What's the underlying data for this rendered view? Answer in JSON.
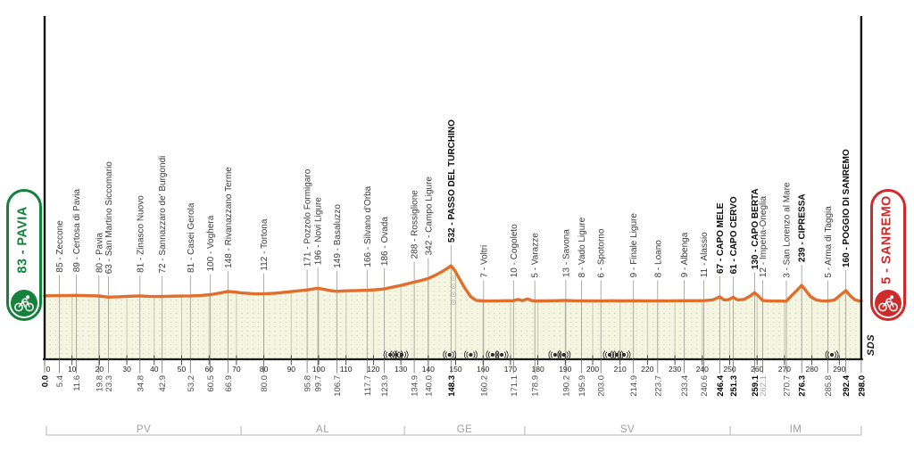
{
  "race": {
    "start_badge": {
      "text": "83 - PAVIA"
    },
    "finish_badge": {
      "text": "5 - SANREMO"
    },
    "brand": "SDS"
  },
  "chart_data": {
    "type": "area",
    "title": "Road race elevation profile Pavia - Sanremo",
    "x_unit": "km",
    "y_unit": "m",
    "x_range": [
      0,
      298
    ],
    "total_km": 298.0,
    "max_elev_m": 532,
    "x_axis_ticks_km": [
      0,
      10,
      20,
      30,
      40,
      50,
      60,
      70,
      80,
      90,
      100,
      110,
      120,
      130,
      140,
      150,
      160,
      170,
      180,
      190,
      200,
      210,
      220,
      230,
      240,
      250,
      260,
      270,
      280,
      290
    ],
    "waypoints": [
      {
        "km": 0.0,
        "elev": 83,
        "name": null,
        "role": "start",
        "bold_km": true
      },
      {
        "km": 5.4,
        "elev": 85,
        "name": "Zeccone"
      },
      {
        "km": 11.6,
        "elev": 89,
        "name": "Certosa di Pavia"
      },
      {
        "km": 19.8,
        "elev": 80,
        "name": "Pavia"
      },
      {
        "km": 23.3,
        "elev": 63,
        "name": "San Martino Siccomario"
      },
      {
        "km": 34.8,
        "elev": 81,
        "name": "Zinasco Nuovo"
      },
      {
        "km": 42.9,
        "elev": 72,
        "name": "Sannazzaro de' Burgondi"
      },
      {
        "km": 53.2,
        "elev": 81,
        "name": "Casei Gerola"
      },
      {
        "km": 60.5,
        "elev": 100,
        "name": "Voghera"
      },
      {
        "km": 66.9,
        "elev": 148,
        "name": "Rivanazzano Terme"
      },
      {
        "km": 80.0,
        "elev": 112,
        "name": "Tortona"
      },
      {
        "km": 95.8,
        "elev": 171,
        "name": "Pozzolo Formigaro"
      },
      {
        "km": 99.7,
        "elev": 196,
        "name": "Novi Ligure"
      },
      {
        "km": 106.7,
        "elev": 149,
        "name": "Basaluzzo"
      },
      {
        "km": 117.7,
        "elev": 166,
        "name": "Silvano d'Orba"
      },
      {
        "km": 123.9,
        "elev": 186,
        "name": "Ovada"
      },
      {
        "km": 134.9,
        "elev": 288,
        "name": "Rossiglione"
      },
      {
        "km": 140.0,
        "elev": 342,
        "name": "Campo Ligure"
      },
      {
        "km": 148.3,
        "elev": 532,
        "name": "PASSO DEL TURCHINO",
        "climb": true,
        "bold_km": true
      },
      {
        "km": 160.2,
        "elev": 7,
        "name": "Voltri"
      },
      {
        "km": 171.1,
        "elev": 10,
        "name": "Cogoleto"
      },
      {
        "km": 178.9,
        "elev": 5,
        "name": "Varazze"
      },
      {
        "km": 190.2,
        "elev": 13,
        "name": "Savona"
      },
      {
        "km": 195.9,
        "elev": 8,
        "name": "Vado Ligure"
      },
      {
        "km": 203.0,
        "elev": 6,
        "name": "Spotorno"
      },
      {
        "km": 214.9,
        "elev": 9,
        "name": "Finale Ligure"
      },
      {
        "km": 223.7,
        "elev": 8,
        "name": "Loano"
      },
      {
        "km": 233.4,
        "elev": 9,
        "name": "Albenga"
      },
      {
        "km": 240.6,
        "elev": 11,
        "name": "Alassio"
      },
      {
        "km": 246.4,
        "elev": 67,
        "name": "CAPO MELE",
        "climb": true,
        "bold_km": true
      },
      {
        "km": 251.3,
        "elev": 61,
        "name": "CAPO CERVO",
        "climb": true,
        "bold_km": true
      },
      {
        "km": 259.1,
        "elev": 130,
        "name": "CAPO BERTA",
        "climb": true,
        "bold_km": true
      },
      {
        "km": 262.1,
        "elev": 12,
        "name": "Imperia-Oneglia",
        "muted_km": true
      },
      {
        "km": 270.7,
        "elev": 3,
        "name": "San Lorenzo al Mare"
      },
      {
        "km": 276.3,
        "elev": 239,
        "name": "CIPRESSA",
        "climb": true,
        "bold_km": true
      },
      {
        "km": 285.8,
        "elev": 5,
        "name": "Arma di Taggia"
      },
      {
        "km": 292.4,
        "elev": 160,
        "name": "POGGIO DI SANREMO",
        "climb": true,
        "bold_km": true
      },
      {
        "km": 298.0,
        "elev": 5,
        "name": null,
        "role": "finish",
        "bold_km": true
      }
    ],
    "regions": [
      {
        "code": "PV",
        "from_km": 0,
        "to_km": 71.7
      },
      {
        "code": "AL",
        "from_km": 71.7,
        "to_km": 131.3
      },
      {
        "code": "GE",
        "from_km": 131.3,
        "to_km": 175.2
      },
      {
        "code": "SV",
        "from_km": 175.2,
        "to_km": 250.2
      },
      {
        "code": "IM",
        "from_km": 250.2,
        "to_km": 298
      }
    ],
    "tunnel_markers_km": [
      126.1,
      128.4,
      130.3,
      147.8,
      155.5,
      163.5,
      166.8,
      186.3,
      189.5,
      206.2,
      208.8,
      211.4,
      287.3
    ],
    "descent_tunnel_stack": {
      "km": 149.2,
      "count": 4
    },
    "render_points": [
      [
        0,
        83
      ],
      [
        5.4,
        85
      ],
      [
        9,
        88
      ],
      [
        11.6,
        89
      ],
      [
        15,
        85
      ],
      [
        19.8,
        80
      ],
      [
        23.3,
        63
      ],
      [
        27,
        68
      ],
      [
        31,
        76
      ],
      [
        34.8,
        81
      ],
      [
        38,
        75
      ],
      [
        42.9,
        72
      ],
      [
        47,
        77
      ],
      [
        53.2,
        81
      ],
      [
        57,
        88
      ],
      [
        60.5,
        100
      ],
      [
        63.5,
        122
      ],
      [
        66.9,
        148
      ],
      [
        69,
        141
      ],
      [
        72,
        126
      ],
      [
        76,
        115
      ],
      [
        80,
        112
      ],
      [
        84,
        121
      ],
      [
        88,
        137
      ],
      [
        92,
        154
      ],
      [
        95.8,
        171
      ],
      [
        99.7,
        196
      ],
      [
        101.8,
        182
      ],
      [
        104.3,
        160
      ],
      [
        106.7,
        149
      ],
      [
        110,
        157
      ],
      [
        114,
        162
      ],
      [
        117.7,
        166
      ],
      [
        121,
        173
      ],
      [
        123.9,
        186
      ],
      [
        127,
        212
      ],
      [
        130.5,
        243
      ],
      [
        134.9,
        288
      ],
      [
        137.5,
        313
      ],
      [
        140,
        342
      ],
      [
        142.3,
        385
      ],
      [
        144.8,
        438
      ],
      [
        146.8,
        490
      ],
      [
        148.3,
        532
      ],
      [
        149.8,
        455
      ],
      [
        151.5,
        330
      ],
      [
        153.5,
        190
      ],
      [
        155.5,
        70
      ],
      [
        157.5,
        15
      ],
      [
        160.2,
        7
      ],
      [
        164,
        6
      ],
      [
        168,
        9
      ],
      [
        171.1,
        10
      ],
      [
        172.8,
        28
      ],
      [
        174.3,
        10
      ],
      [
        176.3,
        36
      ],
      [
        177.6,
        12
      ],
      [
        178.9,
        5
      ],
      [
        182,
        7
      ],
      [
        186,
        10
      ],
      [
        190.2,
        13
      ],
      [
        193,
        9
      ],
      [
        195.9,
        8
      ],
      [
        199.5,
        7
      ],
      [
        203,
        6
      ],
      [
        207,
        9
      ],
      [
        211,
        7
      ],
      [
        214.9,
        9
      ],
      [
        219,
        7
      ],
      [
        223.7,
        8
      ],
      [
        228.5,
        8
      ],
      [
        233.4,
        9
      ],
      [
        237,
        9
      ],
      [
        240.6,
        11
      ],
      [
        243.8,
        22
      ],
      [
        246.4,
        67
      ],
      [
        247.9,
        22
      ],
      [
        249.6,
        26
      ],
      [
        251.3,
        61
      ],
      [
        252.9,
        22
      ],
      [
        255.2,
        30
      ],
      [
        257.2,
        72
      ],
      [
        259.1,
        130
      ],
      [
        260.6,
        74
      ],
      [
        262.1,
        12
      ],
      [
        265,
        6
      ],
      [
        268,
        4
      ],
      [
        270.7,
        3
      ],
      [
        272.6,
        85
      ],
      [
        274.6,
        165
      ],
      [
        276.3,
        239
      ],
      [
        277.9,
        155
      ],
      [
        279.6,
        68
      ],
      [
        281.6,
        20
      ],
      [
        283.6,
        8
      ],
      [
        285.8,
        5
      ],
      [
        288.2,
        18
      ],
      [
        290.4,
        95
      ],
      [
        292.4,
        160
      ],
      [
        294.1,
        78
      ],
      [
        295.7,
        24
      ],
      [
        297.1,
        8
      ],
      [
        298,
        5
      ]
    ],
    "colors": {
      "profile": "#e16e2c",
      "area_fill": "#f5f6e2",
      "texture_dot": "#d9dcc1",
      "grid": "#c6cab0",
      "leader": "#9a9a91",
      "axis": "#1b1b1b",
      "start_accent": "#15823c",
      "finish_accent": "#cf2b2b"
    }
  }
}
